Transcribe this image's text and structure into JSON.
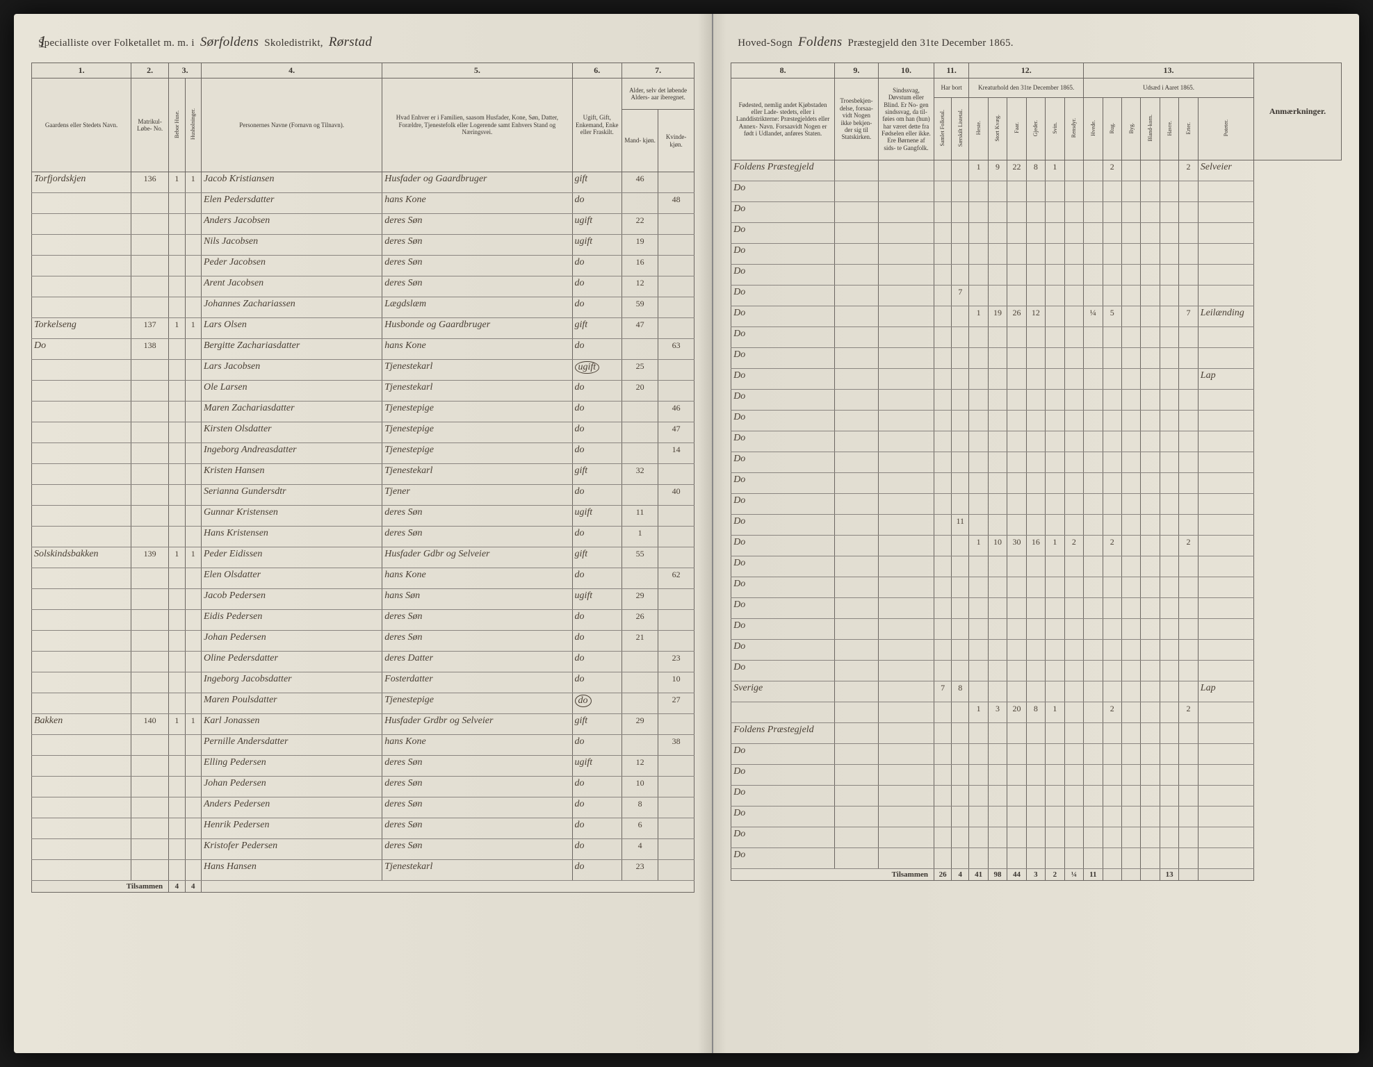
{
  "pageNumber": "1",
  "header": {
    "left": {
      "printed1": "Specialliste over Folketallet m. m. i",
      "script1": "Sørfoldens",
      "printed2": "Skoledistrikt,",
      "script2": "Rørstad"
    },
    "right": {
      "printed1": "Hoved-Sogn",
      "script1": "Foldens",
      "printed2": "Præstegjeld den 31te December 1865."
    }
  },
  "leftColumns": {
    "nums": [
      "1.",
      "2.",
      "3.",
      "4.",
      "5.",
      "6.",
      "7."
    ],
    "labels": {
      "c1": "Gaardens eller Stedets\nNavn.",
      "c2": "Matrikul-\nLøbe-\nNo.",
      "c3a": "Bebor Huse.",
      "c3b": "Husholninger.",
      "c4": "Personernes Navne (Fornavn og Tilnavn).",
      "c5": "Hvad Enhver er i Familien, saasom Husfader,\nKone, Søn, Datter, Forældre, Tjenestefolk\neller Logerende\nsamt\nEnhvers Stand og Næringsvei.",
      "c6": "Ugift, Gift,\nEnkemand,\nEnke eller\nFraskilt.",
      "c7": "Alder,\nselv det løbende Alders-\naar iberegnet.",
      "c7a": "Mand-\nkjøn.",
      "c7b": "Kvinde-\nkjøn."
    }
  },
  "rightColumns": {
    "nums": [
      "8.",
      "9.",
      "10.",
      "11.",
      "12.",
      "13."
    ],
    "labels": {
      "c8": "Fødested,\nnemlig andet Kjøbstaden eller Lade-\nstedets, eller i Landdistrikterne:\nPræstegjeldets eller Annex-\nNavn. Forsaavidt Nogen er\nfødt i Udlandet, anføres\nStaten.",
      "c9": "Troesbekjen-\ndelse, forsaa-\nvidt Nogen\nikke bekjen-\nder sig til\nStatskirken.",
      "c10": "Sindssvag, Døvstum\neller Blind. Er No-\ngen sindssvag, da til-\nføies om han (hun)\nhar været dette fra\nFødselen eller ikke.\nEre Børnene af sids-\nte Gangfolk.",
      "c11": "Har bort",
      "c11a": "Samlet Folketal.",
      "c11b": "Særskilt Listetal.",
      "c12": "Kreaturhold\nden 31te December 1865.",
      "c12a": "Heste.",
      "c12b": "Stort Kvæg.",
      "c12c": "Faar.",
      "c12d": "Gjeder.",
      "c12e": "Svin.",
      "c12f": "Rensdyr.",
      "c13": "Udsæd i\nAaret 1865.",
      "c13a": "Hvede.",
      "c13b": "Rug.",
      "c13c": "Byg.",
      "c13d": "Bland-korn.",
      "c13e": "Havre.",
      "c13f": "Erter.",
      "c13g": "Poteter.",
      "anm": "Anmærkninger."
    }
  },
  "rows": [
    {
      "gaard": "Torfjordskjen",
      "mat": "136",
      "hus": "1",
      "hh": "1",
      "navn": "Jacob Kristiansen",
      "stand": "Husfader og Gaardbruger",
      "stat": "gift",
      "mAge": "46",
      "kAge": "",
      "fode": "Foldens Præstegjeld",
      "c11a": "",
      "c11b": "",
      "k": [
        "1",
        "9",
        "22",
        "8",
        "1",
        "",
        "",
        "2",
        "",
        "",
        "",
        "2"
      ],
      "anm": "Selveier"
    },
    {
      "gaard": "",
      "mat": "",
      "hus": "",
      "hh": "",
      "navn": "Elen Pedersdatter",
      "stand": "hans Kone",
      "stat": "do",
      "mAge": "",
      "kAge": "48",
      "fode": "Do",
      "c11a": "",
      "c11b": "",
      "k": [
        "",
        "",
        "",
        "",
        "",
        "",
        "",
        "",
        "",
        "",
        "",
        ""
      ],
      "anm": ""
    },
    {
      "gaard": "",
      "mat": "",
      "hus": "",
      "hh": "",
      "navn": "Anders Jacobsen",
      "stand": "deres Søn",
      "stat": "ugift",
      "mAge": "22",
      "kAge": "",
      "fode": "Do",
      "c11a": "",
      "c11b": "",
      "k": [
        "",
        "",
        "",
        "",
        "",
        "",
        "",
        "",
        "",
        "",
        "",
        ""
      ],
      "anm": ""
    },
    {
      "gaard": "",
      "mat": "",
      "hus": "",
      "hh": "",
      "navn": "Nils Jacobsen",
      "stand": "deres Søn",
      "stat": "ugift",
      "mAge": "19",
      "kAge": "",
      "fode": "Do",
      "c11a": "",
      "c11b": "",
      "k": [
        "",
        "",
        "",
        "",
        "",
        "",
        "",
        "",
        "",
        "",
        "",
        ""
      ],
      "anm": ""
    },
    {
      "gaard": "",
      "mat": "",
      "hus": "",
      "hh": "",
      "navn": "Peder Jacobsen",
      "stand": "deres Søn",
      "stat": "do",
      "mAge": "16",
      "kAge": "",
      "fode": "Do",
      "c11a": "",
      "c11b": "",
      "k": [
        "",
        "",
        "",
        "",
        "",
        "",
        "",
        "",
        "",
        "",
        "",
        ""
      ],
      "anm": ""
    },
    {
      "gaard": "",
      "mat": "",
      "hus": "",
      "hh": "",
      "navn": "Arent Jacobsen",
      "stand": "deres Søn",
      "stat": "do",
      "mAge": "12",
      "kAge": "",
      "fode": "Do",
      "c11a": "",
      "c11b": "",
      "k": [
        "",
        "",
        "",
        "",
        "",
        "",
        "",
        "",
        "",
        "",
        "",
        ""
      ],
      "anm": ""
    },
    {
      "gaard": "",
      "mat": "",
      "hus": "",
      "hh": "",
      "navn": "Johannes Zachariassen",
      "stand": "Lægdslæm",
      "stat": "do",
      "mAge": "59",
      "kAge": "",
      "fode": "Do",
      "c11a": "",
      "c11b": "7",
      "k": [
        "",
        "",
        "",
        "",
        "",
        "",
        "",
        "",
        "",
        "",
        "",
        ""
      ],
      "anm": ""
    },
    {
      "gaard": "Torkelseng",
      "mat": "137",
      "hus": "1",
      "hh": "1",
      "navn": "Lars Olsen",
      "stand": "Husbonde og Gaardbruger",
      "stat": "gift",
      "mAge": "47",
      "kAge": "",
      "fode": "Do",
      "c11a": "",
      "c11b": "",
      "k": [
        "1",
        "19",
        "26",
        "12",
        "",
        "",
        "¼",
        "5",
        "",
        "",
        "",
        "7"
      ],
      "anm": "Leilænding"
    },
    {
      "gaard": "Do",
      "mat": "138",
      "hus": "",
      "hh": "",
      "navn": "Bergitte Zachariasdatter",
      "stand": "hans Kone",
      "stat": "do",
      "mAge": "",
      "kAge": "63",
      "fode": "Do",
      "c11a": "",
      "c11b": "",
      "k": [
        "",
        "",
        "",
        "",
        "",
        "",
        "",
        "",
        "",
        "",
        "",
        ""
      ],
      "anm": ""
    },
    {
      "gaard": "",
      "mat": "",
      "hus": "",
      "hh": "",
      "navn": "Lars Jacobsen",
      "stand": "Tjenestekarl",
      "stat": "ugift",
      "mAge": "25",
      "kAge": "",
      "fode": "Do",
      "c11a": "",
      "c11b": "",
      "k": [
        "",
        "",
        "",
        "",
        "",
        "",
        "",
        "",
        "",
        "",
        "",
        ""
      ],
      "anm": "",
      "circled": "stat"
    },
    {
      "gaard": "",
      "mat": "",
      "hus": "",
      "hh": "",
      "navn": "Ole Larsen",
      "stand": "Tjenestekarl",
      "stat": "do",
      "mAge": "20",
      "kAge": "",
      "fode": "Do",
      "c11a": "",
      "c11b": "",
      "k": [
        "",
        "",
        "",
        "",
        "",
        "",
        "",
        "",
        "",
        "",
        "",
        ""
      ],
      "anm": "Lap"
    },
    {
      "gaard": "",
      "mat": "",
      "hus": "",
      "hh": "",
      "navn": "Maren Zachariasdatter",
      "stand": "Tjenestepige",
      "stat": "do",
      "mAge": "",
      "kAge": "46",
      "fode": "Do",
      "c11a": "",
      "c11b": "",
      "k": [
        "",
        "",
        "",
        "",
        "",
        "",
        "",
        "",
        "",
        "",
        "",
        ""
      ],
      "anm": ""
    },
    {
      "gaard": "",
      "mat": "",
      "hus": "",
      "hh": "",
      "navn": "Kirsten Olsdatter",
      "stand": "Tjenestepige",
      "stat": "do",
      "mAge": "",
      "kAge": "47",
      "fode": "Do",
      "c11a": "",
      "c11b": "",
      "k": [
        "",
        "",
        "",
        "",
        "",
        "",
        "",
        "",
        "",
        "",
        "",
        ""
      ],
      "anm": ""
    },
    {
      "gaard": "",
      "mat": "",
      "hus": "",
      "hh": "",
      "navn": "Ingeborg Andreasdatter",
      "stand": "Tjenestepige",
      "stat": "do",
      "mAge": "",
      "kAge": "14",
      "fode": "Do",
      "c11a": "",
      "c11b": "",
      "k": [
        "",
        "",
        "",
        "",
        "",
        "",
        "",
        "",
        "",
        "",
        "",
        ""
      ],
      "anm": ""
    },
    {
      "gaard": "",
      "mat": "",
      "hus": "",
      "hh": "",
      "navn": "Kristen Hansen",
      "stand": "Tjenestekarl",
      "stat": "gift",
      "mAge": "32",
      "kAge": "",
      "fode": "Do",
      "c11a": "",
      "c11b": "",
      "k": [
        "",
        "",
        "",
        "",
        "",
        "",
        "",
        "",
        "",
        "",
        "",
        ""
      ],
      "anm": ""
    },
    {
      "gaard": "",
      "mat": "",
      "hus": "",
      "hh": "",
      "navn": "Serianna Gundersdtr",
      "stand": "Tjener",
      "stat": "do",
      "mAge": "",
      "kAge": "40",
      "fode": "Do",
      "c11a": "",
      "c11b": "",
      "k": [
        "",
        "",
        "",
        "",
        "",
        "",
        "",
        "",
        "",
        "",
        "",
        ""
      ],
      "anm": ""
    },
    {
      "gaard": "",
      "mat": "",
      "hus": "",
      "hh": "",
      "navn": "Gunnar Kristensen",
      "stand": "deres Søn",
      "stat": "ugift",
      "mAge": "11",
      "kAge": "",
      "fode": "Do",
      "c11a": "",
      "c11b": "",
      "k": [
        "",
        "",
        "",
        "",
        "",
        "",
        "",
        "",
        "",
        "",
        "",
        ""
      ],
      "anm": ""
    },
    {
      "gaard": "",
      "mat": "",
      "hus": "",
      "hh": "",
      "navn": "Hans Kristensen",
      "stand": "deres Søn",
      "stat": "do",
      "mAge": "1",
      "kAge": "",
      "fode": "Do",
      "c11a": "",
      "c11b": "11",
      "k": [
        "",
        "",
        "",
        "",
        "",
        "",
        "",
        "",
        "",
        "",
        "",
        ""
      ],
      "anm": ""
    },
    {
      "gaard": "Solskindsbakken",
      "mat": "139",
      "hus": "1",
      "hh": "1",
      "navn": "Peder Eidissen",
      "stand": "Husfader Gdbr og Selveier",
      "stat": "gift",
      "mAge": "55",
      "kAge": "",
      "fode": "Do",
      "c11a": "",
      "c11b": "",
      "k": [
        "1",
        "10",
        "30",
        "16",
        "1",
        "2",
        "",
        "2",
        "",
        "",
        "",
        "2"
      ],
      "anm": ""
    },
    {
      "gaard": "",
      "mat": "",
      "hus": "",
      "hh": "",
      "navn": "Elen Olsdatter",
      "stand": "hans Kone",
      "stat": "do",
      "mAge": "",
      "kAge": "62",
      "fode": "Do",
      "c11a": "",
      "c11b": "",
      "k": [
        "",
        "",
        "",
        "",
        "",
        "",
        "",
        "",
        "",
        "",
        "",
        ""
      ],
      "anm": ""
    },
    {
      "gaard": "",
      "mat": "",
      "hus": "",
      "hh": "",
      "navn": "Jacob Pedersen",
      "stand": "hans Søn",
      "stat": "ugift",
      "mAge": "29",
      "kAge": "",
      "fode": "Do",
      "c11a": "",
      "c11b": "",
      "k": [
        "",
        "",
        "",
        "",
        "",
        "",
        "",
        "",
        "",
        "",
        "",
        ""
      ],
      "anm": ""
    },
    {
      "gaard": "",
      "mat": "",
      "hus": "",
      "hh": "",
      "navn": "Eidis Pedersen",
      "stand": "deres Søn",
      "stat": "do",
      "mAge": "26",
      "kAge": "",
      "fode": "Do",
      "c11a": "",
      "c11b": "",
      "k": [
        "",
        "",
        "",
        "",
        "",
        "",
        "",
        "",
        "",
        "",
        "",
        ""
      ],
      "anm": ""
    },
    {
      "gaard": "",
      "mat": "",
      "hus": "",
      "hh": "",
      "navn": "Johan Pedersen",
      "stand": "deres Søn",
      "stat": "do",
      "mAge": "21",
      "kAge": "",
      "fode": "Do",
      "c11a": "",
      "c11b": "",
      "k": [
        "",
        "",
        "",
        "",
        "",
        "",
        "",
        "",
        "",
        "",
        "",
        ""
      ],
      "anm": ""
    },
    {
      "gaard": "",
      "mat": "",
      "hus": "",
      "hh": "",
      "navn": "Oline Pedersdatter",
      "stand": "deres Datter",
      "stat": "do",
      "mAge": "",
      "kAge": "23",
      "fode": "Do",
      "c11a": "",
      "c11b": "",
      "k": [
        "",
        "",
        "",
        "",
        "",
        "",
        "",
        "",
        "",
        "",
        "",
        ""
      ],
      "anm": ""
    },
    {
      "gaard": "",
      "mat": "",
      "hus": "",
      "hh": "",
      "navn": "Ingeborg Jacobsdatter",
      "stand": "Fosterdatter",
      "stat": "do",
      "mAge": "",
      "kAge": "10",
      "fode": "Do",
      "c11a": "",
      "c11b": "",
      "k": [
        "",
        "",
        "",
        "",
        "",
        "",
        "",
        "",
        "",
        "",
        "",
        ""
      ],
      "anm": ""
    },
    {
      "gaard": "",
      "mat": "",
      "hus": "",
      "hh": "",
      "navn": "Maren Poulsdatter",
      "stand": "Tjenestepige",
      "stat": "do",
      "mAge": "",
      "kAge": "27",
      "fode": "Sverige",
      "c11a": "7",
      "c11b": "8",
      "k": [
        "",
        "",
        "",
        "",
        "",
        "",
        "",
        "",
        "",
        "",
        "",
        ""
      ],
      "anm": "Lap",
      "circled": "stat"
    },
    {
      "gaard": "Bakken",
      "mat": "140",
      "hus": "1",
      "hh": "1",
      "navn": "Karl Jonassen",
      "stand": "Husfader Grdbr og Selveier",
      "stat": "gift",
      "mAge": "29",
      "kAge": "",
      "fode": "",
      "c11a": "",
      "c11b": "",
      "k": [
        "1",
        "3",
        "20",
        "8",
        "1",
        "",
        "",
        "2",
        "",
        "",
        "",
        "2"
      ],
      "anm": ""
    },
    {
      "gaard": "",
      "mat": "",
      "hus": "",
      "hh": "",
      "navn": "Pernille Andersdatter",
      "stand": "hans Kone",
      "stat": "do",
      "mAge": "",
      "kAge": "38",
      "fode": "Foldens Præstegjeld",
      "c11a": "",
      "c11b": "",
      "k": [
        "",
        "",
        "",
        "",
        "",
        "",
        "",
        "",
        "",
        "",
        "",
        ""
      ],
      "anm": ""
    },
    {
      "gaard": "",
      "mat": "",
      "hus": "",
      "hh": "",
      "navn": "Elling Pedersen",
      "stand": "deres Søn",
      "stat": "ugift",
      "mAge": "12",
      "kAge": "",
      "fode": "Do",
      "c11a": "",
      "c11b": "",
      "k": [
        "",
        "",
        "",
        "",
        "",
        "",
        "",
        "",
        "",
        "",
        "",
        ""
      ],
      "anm": ""
    },
    {
      "gaard": "",
      "mat": "",
      "hus": "",
      "hh": "",
      "navn": "Johan Pedersen",
      "stand": "deres Søn",
      "stat": "do",
      "mAge": "10",
      "kAge": "",
      "fode": "Do",
      "c11a": "",
      "c11b": "",
      "k": [
        "",
        "",
        "",
        "",
        "",
        "",
        "",
        "",
        "",
        "",
        "",
        ""
      ],
      "anm": ""
    },
    {
      "gaard": "",
      "mat": "",
      "hus": "",
      "hh": "",
      "navn": "Anders Pedersen",
      "stand": "deres Søn",
      "stat": "do",
      "mAge": "8",
      "kAge": "",
      "fode": "Do",
      "c11a": "",
      "c11b": "",
      "k": [
        "",
        "",
        "",
        "",
        "",
        "",
        "",
        "",
        "",
        "",
        "",
        ""
      ],
      "anm": ""
    },
    {
      "gaard": "",
      "mat": "",
      "hus": "",
      "hh": "",
      "navn": "Henrik Pedersen",
      "stand": "deres Søn",
      "stat": "do",
      "mAge": "6",
      "kAge": "",
      "fode": "Do",
      "c11a": "",
      "c11b": "",
      "k": [
        "",
        "",
        "",
        "",
        "",
        "",
        "",
        "",
        "",
        "",
        "",
        ""
      ],
      "anm": ""
    },
    {
      "gaard": "",
      "mat": "",
      "hus": "",
      "hh": "",
      "navn": "Kristofer Pedersen",
      "stand": "deres Søn",
      "stat": "do",
      "mAge": "4",
      "kAge": "",
      "fode": "Do",
      "c11a": "",
      "c11b": "",
      "k": [
        "",
        "",
        "",
        "",
        "",
        "",
        "",
        "",
        "",
        "",
        "",
        ""
      ],
      "anm": ""
    },
    {
      "gaard": "",
      "mat": "",
      "hus": "",
      "hh": "",
      "navn": "Hans Hansen",
      "stand": "Tjenestekarl",
      "stat": "do",
      "mAge": "23",
      "kAge": "",
      "fode": "Do",
      "c11a": "",
      "c11b": "",
      "k": [
        "",
        "",
        "",
        "",
        "",
        "",
        "",
        "",
        "",
        "",
        "",
        ""
      ],
      "anm": ""
    }
  ],
  "footerLeft": {
    "label": "Tilsammen",
    "hus": "4",
    "hh": "4"
  },
  "footerRight": {
    "label": "Tilsammen",
    "c11a": "26",
    "c11b": "4",
    "k": [
      "41",
      "98",
      "44",
      "3",
      "2",
      "¼",
      "11",
      "",
      "",
      "",
      "13"
    ]
  },
  "colors": {
    "paper": "#e8e4d8",
    "ink": "#3a3530",
    "scriptInk": "#4a4035",
    "border": "#6a6560"
  }
}
